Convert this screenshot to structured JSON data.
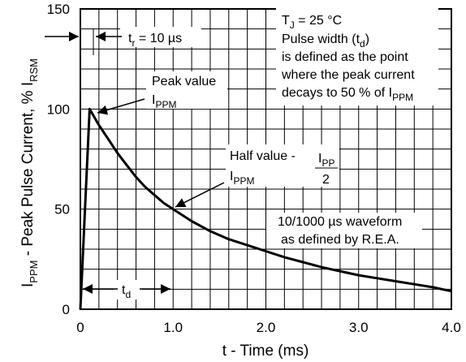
{
  "chart_data": {
    "type": "line",
    "title": "",
    "xlabel": "t - Time (ms)",
    "ylabel_main": "I",
    "ylabel_sub": "PPM",
    "ylabel_mid": " - Peak Pulse Current, % I",
    "ylabel_sub2": "RSM",
    "xlim": [
      0,
      4.0
    ],
    "ylim": [
      0,
      150
    ],
    "x_ticks": [
      0,
      1.0,
      2.0,
      3.0,
      4.0
    ],
    "x_tick_labels": [
      "0",
      "1.0",
      "2.0",
      "3.0",
      "4.0"
    ],
    "y_ticks": [
      0,
      50,
      100,
      150
    ],
    "y_tick_labels": [
      "0",
      "50",
      "100",
      "150"
    ],
    "grid": true,
    "series": [
      {
        "x": [
          0,
          0.1,
          0.2,
          0.3,
          0.4,
          0.5,
          0.6,
          0.7,
          0.8,
          0.9,
          1.0,
          1.2,
          1.4,
          1.6,
          1.8,
          2.0,
          2.2,
          2.4,
          2.6,
          2.8,
          3.0,
          3.2,
          3.4,
          3.6,
          3.8,
          4.0
        ],
        "y": [
          0,
          100,
          92,
          85,
          78,
          72,
          66,
          61,
          57,
          53,
          50,
          44,
          39,
          35,
          32,
          29,
          26,
          23.5,
          21,
          19,
          17,
          15.5,
          14,
          12.5,
          11,
          9
        ]
      }
    ],
    "annotations": {
      "tj_main": "T",
      "tj_sub": "J",
      "tj_rest": " = 25 °C",
      "pulse_width_main": "Pulse width (t",
      "pulse_width_sub": "d",
      "pulse_width_close": ")",
      "defined_line1": "is defined as the point",
      "defined_line2": "where the peak current",
      "defined_line3_main": "decays to 50 % of I",
      "defined_line3_sub": "PPM",
      "tr_main": "t",
      "tr_sub": "r",
      "tr_rest": " = 10 µs",
      "peak_line1": "Peak value",
      "peak_line2_main": "I",
      "peak_line2_sub": "PPM",
      "half_line1": "Half value -",
      "half_line2_main": "I",
      "half_line2_sub": "PPM",
      "frac_num_main": "I",
      "frac_num_sub": "PP",
      "frac_den": "2",
      "waveform_line1": "10/1000 µs waveform",
      "waveform_line2": "as defined by R.E.A.",
      "td_main": "t",
      "td_sub": "d"
    }
  }
}
